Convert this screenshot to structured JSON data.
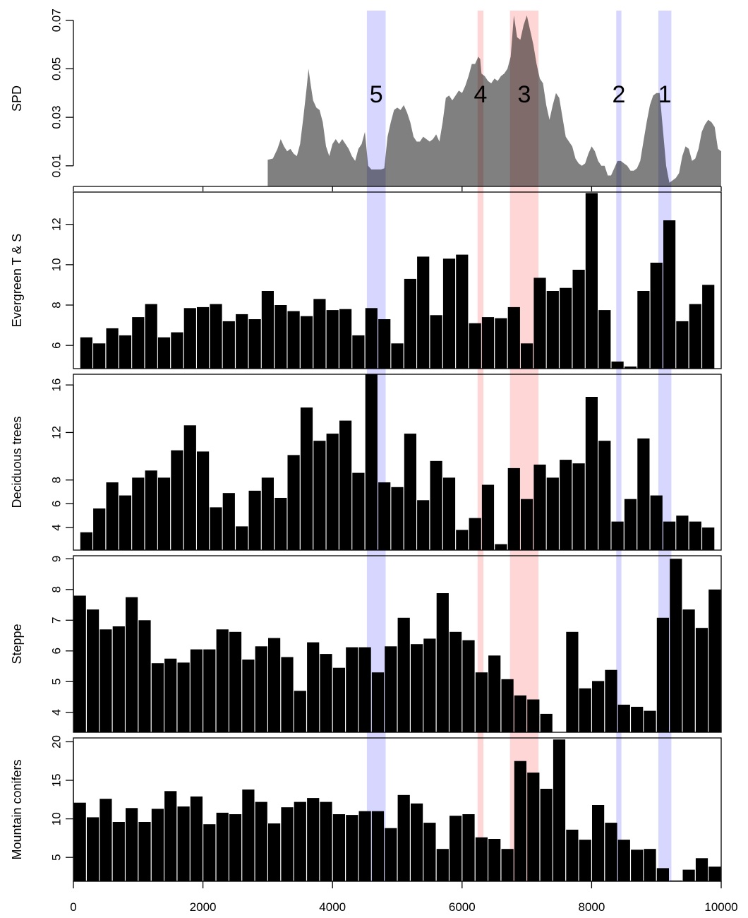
{
  "chart_data": {
    "type": "bar",
    "x_axis": {
      "range": [
        0,
        10000
      ],
      "ticks": [
        0,
        2000,
        4000,
        6000,
        8000,
        10000
      ],
      "tick_labels": [
        "0",
        "2000",
        "4000",
        "6000",
        "8000",
        "10000"
      ]
    },
    "bands": [
      {
        "label": "5",
        "color": "#c8c8ff",
        "from": 4530,
        "to": 4820
      },
      {
        "label": "4",
        "color": "#ffc8c8",
        "from": 6240,
        "to": 6330
      },
      {
        "label": "3",
        "color": "#ffc8c8",
        "from": 6740,
        "to": 7180
      },
      {
        "label": "2",
        "color": "#c8c8ff",
        "from": 8380,
        "to": 8460
      },
      {
        "label": "1",
        "color": "#c8c8ff",
        "from": 9030,
        "to": 9230
      }
    ],
    "panels": [
      {
        "name": "SPD",
        "type": "area",
        "color": "#808080",
        "ylim": [
          0.0015,
          0.074
        ],
        "yticks": [
          0.01,
          0.03,
          0.05,
          0.07
        ],
        "ytick_labels": [
          "0.01",
          "0.03",
          "0.05",
          "0.07"
        ],
        "x": [
          3000,
          3080,
          3150,
          3200,
          3250,
          3300,
          3350,
          3400,
          3450,
          3500,
          3550,
          3600,
          3630,
          3660,
          3700,
          3750,
          3800,
          3850,
          3900,
          3950,
          4000,
          4050,
          4100,
          4150,
          4200,
          4250,
          4300,
          4350,
          4400,
          4450,
          4500,
          4550,
          4600,
          4650,
          4700,
          4750,
          4800,
          4850,
          4900,
          4950,
          5000,
          5050,
          5100,
          5150,
          5200,
          5250,
          5300,
          5350,
          5400,
          5450,
          5500,
          5550,
          5600,
          5650,
          5700,
          5750,
          5800,
          5850,
          5900,
          5950,
          6000,
          6050,
          6100,
          6150,
          6200,
          6250,
          6280,
          6300,
          6350,
          6400,
          6450,
          6500,
          6550,
          6600,
          6650,
          6700,
          6750,
          6800,
          6850,
          6900,
          6950,
          7000,
          7050,
          7100,
          7150,
          7200,
          7250,
          7300,
          7350,
          7400,
          7450,
          7500,
          7550,
          7600,
          7650,
          7700,
          7750,
          7800,
          7850,
          7900,
          7950,
          8000,
          8050,
          8100,
          8150,
          8200,
          8250,
          8300,
          8350,
          8400,
          8450,
          8500,
          8550,
          8600,
          8650,
          8700,
          8750,
          8800,
          8850,
          8900,
          8950,
          9000,
          9050,
          9100,
          9150,
          9200,
          9250,
          9300,
          9350,
          9400,
          9450,
          9500,
          9550,
          9600,
          9650,
          9700,
          9750,
          9800,
          9850,
          9900,
          9950,
          10000
        ],
        "y": [
          0.0125,
          0.013,
          0.017,
          0.021,
          0.018,
          0.016,
          0.017,
          0.015,
          0.014,
          0.019,
          0.03,
          0.042,
          0.05,
          0.044,
          0.037,
          0.034,
          0.033,
          0.028,
          0.018,
          0.014,
          0.019,
          0.021,
          0.019,
          0.021,
          0.019,
          0.017,
          0.014,
          0.012,
          0.017,
          0.019,
          0.024,
          0.01,
          0.0085,
          0.0085,
          0.0085,
          0.0085,
          0.009,
          0.022,
          0.028,
          0.033,
          0.034,
          0.033,
          0.035,
          0.032,
          0.028,
          0.022,
          0.02,
          0.02,
          0.022,
          0.021,
          0.02,
          0.021,
          0.023,
          0.02,
          0.028,
          0.038,
          0.039,
          0.037,
          0.039,
          0.041,
          0.04,
          0.043,
          0.047,
          0.052,
          0.052,
          0.055,
          0.054,
          0.048,
          0.047,
          0.045,
          0.044,
          0.046,
          0.045,
          0.047,
          0.048,
          0.05,
          0.055,
          0.072,
          0.063,
          0.062,
          0.068,
          0.072,
          0.066,
          0.06,
          0.052,
          0.046,
          0.044,
          0.035,
          0.029,
          0.035,
          0.04,
          0.038,
          0.03,
          0.022,
          0.02,
          0.018,
          0.013,
          0.011,
          0.01,
          0.011,
          0.015,
          0.018,
          0.016,
          0.012,
          0.01,
          0.01,
          0.006,
          0.006,
          0.009,
          0.012,
          0.012,
          0.011,
          0.01,
          0.008,
          0.008,
          0.009,
          0.012,
          0.02,
          0.028,
          0.035,
          0.039,
          0.04,
          0.04,
          0.025,
          0.01,
          0.003,
          0.004,
          0.005,
          0.007,
          0.014,
          0.018,
          0.017,
          0.012,
          0.013,
          0.017,
          0.024,
          0.027,
          0.029,
          0.028,
          0.026,
          0.017,
          0.016
        ]
      },
      {
        "name": "Evergreen T & S",
        "type": "bar",
        "ylim": [
          4.85,
          13.6
        ],
        "yticks": [
          6,
          8,
          10,
          12
        ],
        "ytick_labels": [
          "6",
          "8",
          "10",
          "12"
        ],
        "bin_width": 200,
        "start_x": 100,
        "values": [
          6.4,
          6.1,
          6.85,
          6.5,
          7.4,
          8.05,
          6.4,
          6.65,
          7.85,
          7.9,
          8.05,
          7.2,
          7.55,
          7.3,
          8.7,
          8.0,
          7.7,
          7.45,
          8.3,
          7.75,
          7.8,
          6.5,
          7.85,
          7.3,
          6.1,
          9.3,
          10.4,
          7.5,
          10.3,
          10.5,
          7.1,
          7.4,
          7.35,
          7.9,
          6.1,
          9.35,
          8.7,
          8.85,
          9.75,
          13.55,
          7.75,
          5.2,
          4.95,
          8.7,
          10.1,
          12.2,
          7.2,
          8.05,
          9.0
        ]
      },
      {
        "name": "Deciduous trees",
        "type": "bar",
        "ylim": [
          2.1,
          16.9
        ],
        "yticks": [
          4,
          6,
          8,
          12,
          16
        ],
        "ytick_labels": [
          "4",
          "6",
          "8",
          "12",
          "16"
        ],
        "bin_width": 200,
        "start_x": 100,
        "values": [
          3.6,
          5.6,
          7.8,
          6.7,
          8.2,
          8.8,
          8.2,
          10.5,
          12.6,
          10.4,
          5.7,
          6.9,
          4.1,
          7.1,
          8.2,
          6.5,
          10.1,
          14.1,
          11.3,
          11.9,
          13.0,
          8.6,
          16.9,
          7.8,
          7.4,
          11.9,
          6.3,
          9.6,
          8.2,
          3.8,
          4.8,
          7.6,
          2.6,
          9.0,
          6.4,
          9.3,
          8.2,
          9.7,
          9.4,
          15.0,
          11.3,
          4.5,
          6.4,
          11.5,
          6.7,
          4.5,
          5.0,
          4.5,
          4.0
        ]
      },
      {
        "name": "Steppe",
        "type": "bar",
        "ylim": [
          3.35,
          9.1
        ],
        "yticks": [
          4,
          5,
          6,
          7,
          8,
          9
        ],
        "ytick_labels": [
          "4",
          "5",
          "6",
          "7",
          "8",
          "9"
        ],
        "bin_width": 200,
        "start_x": 0,
        "values": [
          7.8,
          7.35,
          6.7,
          6.8,
          7.75,
          7.0,
          5.6,
          5.75,
          5.62,
          6.05,
          6.05,
          6.7,
          6.62,
          5.72,
          6.15,
          6.42,
          5.8,
          4.7,
          6.28,
          5.9,
          5.45,
          6.12,
          6.12,
          5.3,
          6.15,
          7.08,
          6.22,
          6.4,
          7.88,
          6.62,
          6.35,
          5.3,
          5.85,
          5.08,
          4.55,
          4.42,
          3.95,
          3.35,
          6.62,
          4.78,
          5.02,
          5.38,
          4.25,
          4.18,
          4.05,
          7.08,
          9.0,
          7.35,
          6.75,
          8.0
        ]
      },
      {
        "name": "Mountain conifers",
        "type": "bar",
        "ylim": [
          1.9,
          20.5
        ],
        "yticks": [
          5,
          10,
          15,
          20
        ],
        "ytick_labels": [
          "5",
          "10",
          "15",
          "20"
        ],
        "bin_width": 200,
        "start_x": 0,
        "values": [
          12.1,
          10.2,
          12.6,
          9.6,
          11.4,
          9.6,
          11.3,
          13.6,
          11.6,
          12.9,
          9.3,
          10.8,
          10.6,
          13.8,
          12.2,
          9.4,
          11.5,
          12.2,
          12.7,
          12.2,
          10.6,
          10.5,
          11.0,
          11.0,
          8.8,
          13.1,
          12.0,
          9.5,
          6.1,
          10.4,
          10.6,
          7.6,
          7.4,
          6.1,
          17.5,
          16.0,
          13.9,
          20.3,
          8.6,
          7.3,
          11.8,
          9.5,
          7.3,
          6.0,
          6.1,
          3.6,
          2.0,
          3.4,
          4.9,
          3.8
        ]
      }
    ]
  }
}
